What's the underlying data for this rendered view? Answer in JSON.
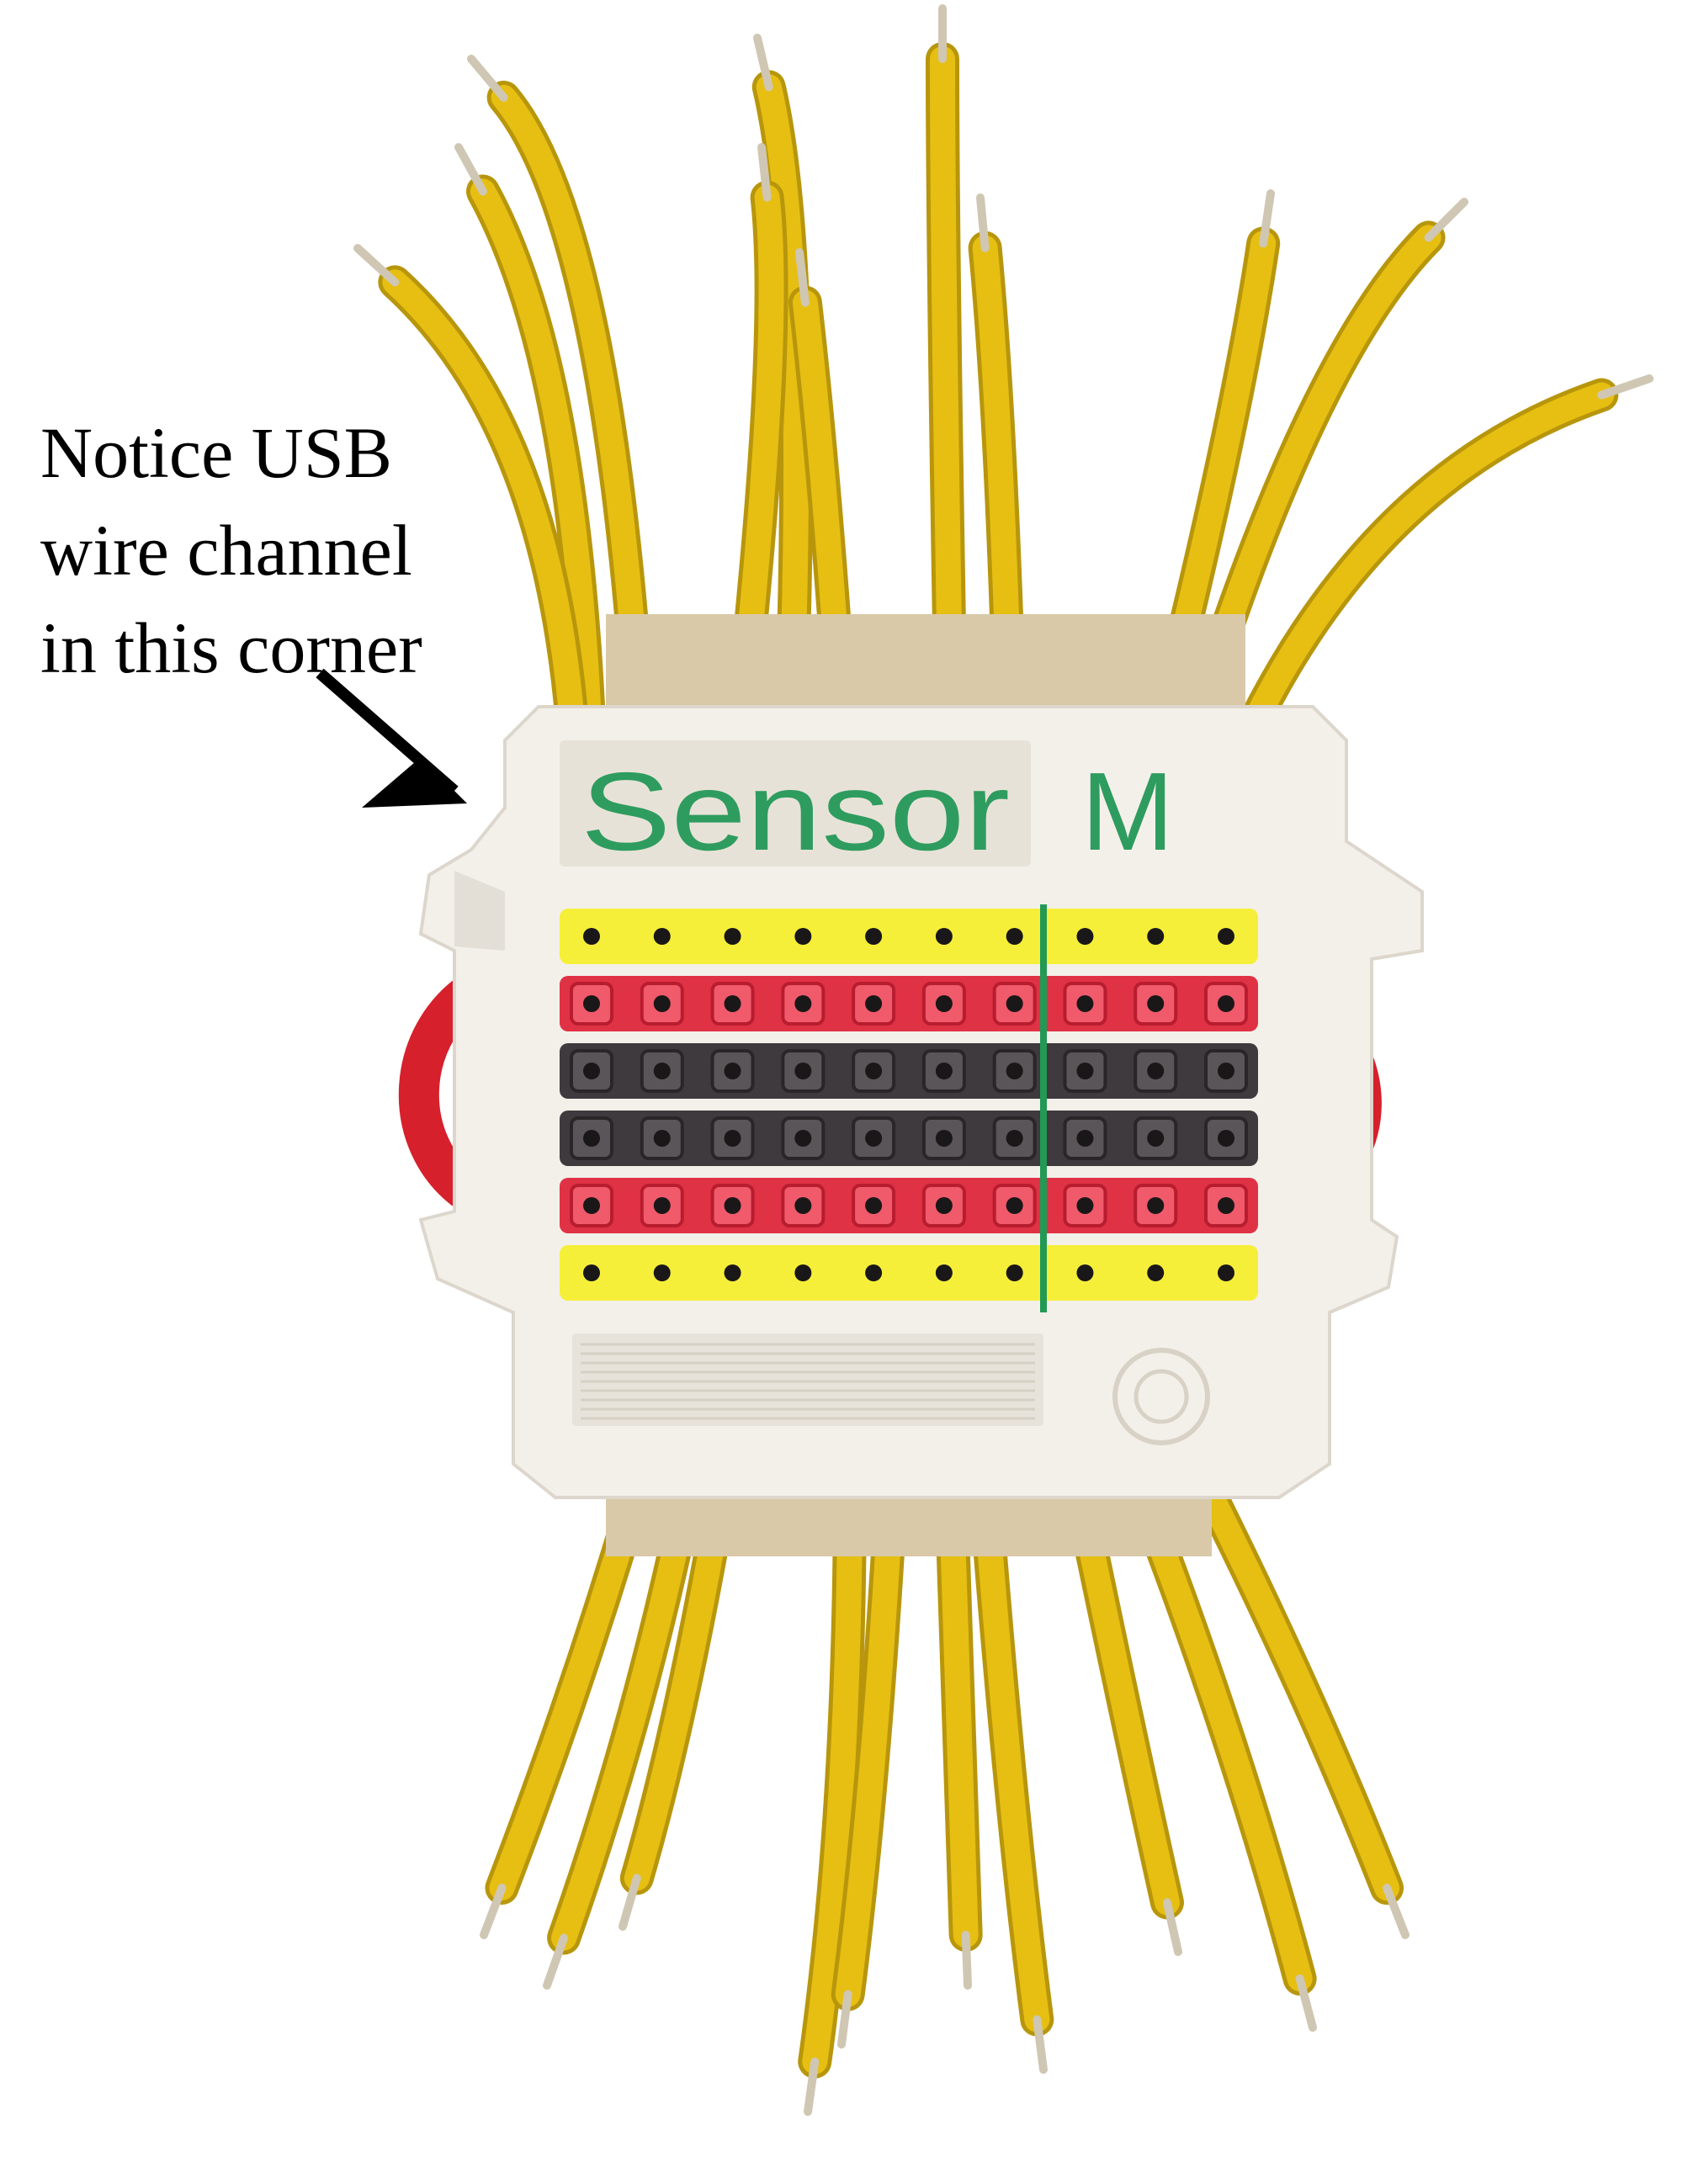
{
  "annotation": {
    "lines": [
      "Notice USB",
      "wire channel",
      "in this corner"
    ]
  },
  "module": {
    "label": "Sensor",
    "letter": "M"
  },
  "colors": {
    "wire_insulation": "#e6bf12",
    "wire_tip": "#cfc7b3",
    "enclosure": "#f3f0ea",
    "label_text": "#2e9c5e",
    "yellow_stripe": "#f6ef3a",
    "red_stripe": "#e03245",
    "black_stripe": "#3f3a3d",
    "divider_line": "#229955",
    "clip": "#d6202b",
    "arrow": "#000000"
  },
  "board": {
    "columns": 10,
    "rows": [
      "yellow",
      "red",
      "black",
      "black",
      "red",
      "yellow"
    ]
  }
}
